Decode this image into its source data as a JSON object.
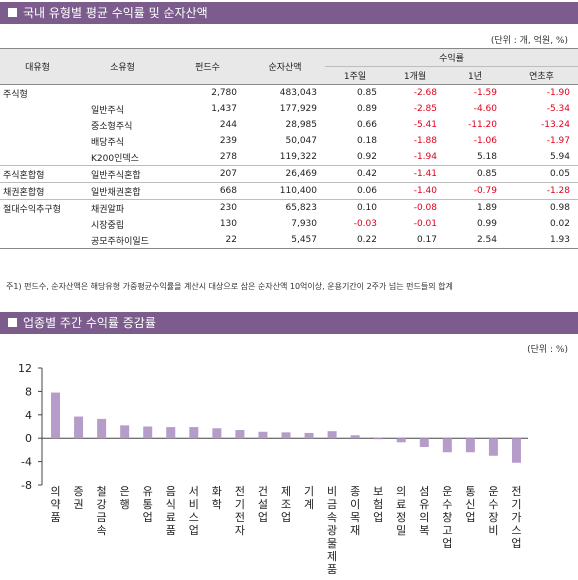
{
  "section1": {
    "title": "국내 유형별 평균 수익률 및 순자산액",
    "unit": "(단위 : 개, 억원, %)",
    "headers": {
      "major": "대유형",
      "minor": "소유형",
      "funds": "펀드수",
      "assets": "순자산액",
      "returns": "수익률",
      "w1": "1주일",
      "m1": "1개월",
      "y1": "1년",
      "ytd": "연초후"
    },
    "rows": [
      {
        "group": "주식형",
        "sub": "",
        "funds": "2,780",
        "assets": "483,043",
        "w1": "0.85",
        "m1": "-2.68",
        "y1": "-1.59",
        "ytd": "-1.90"
      },
      {
        "group": "",
        "sub": "일반주식",
        "funds": "1,437",
        "assets": "177,929",
        "w1": "0.89",
        "m1": "-2.85",
        "y1": "-4.60",
        "ytd": "-5.34"
      },
      {
        "group": "",
        "sub": "중소형주식",
        "funds": "244",
        "assets": "28,985",
        "w1": "0.66",
        "m1": "-5.41",
        "y1": "-11.20",
        "ytd": "-13.24"
      },
      {
        "group": "",
        "sub": "배당주식",
        "funds": "239",
        "assets": "50,047",
        "w1": "0.18",
        "m1": "-1.88",
        "y1": "-1.06",
        "ytd": "-1.97"
      },
      {
        "group": "",
        "sub": "K200인덱스",
        "funds": "278",
        "assets": "119,322",
        "w1": "0.92",
        "m1": "-1.94",
        "y1": "5.18",
        "ytd": "5.94"
      },
      {
        "group": "주식혼합형",
        "sub": "일반주식혼합",
        "funds": "207",
        "assets": "26,469",
        "w1": "0.42",
        "m1": "-1.41",
        "y1": "0.85",
        "ytd": "0.05"
      },
      {
        "group": "채권혼합형",
        "sub": "일반채권혼합",
        "funds": "668",
        "assets": "110,400",
        "w1": "0.06",
        "m1": "-1.40",
        "y1": "-0.79",
        "ytd": "-1.28"
      },
      {
        "group": "절대수익추구형",
        "sub": "채권알파",
        "funds": "230",
        "assets": "65,823",
        "w1": "0.10",
        "m1": "-0.08",
        "y1": "1.89",
        "ytd": "0.98"
      },
      {
        "group": "",
        "sub": "시장중립",
        "funds": "130",
        "assets": "7,930",
        "w1": "-0.03",
        "m1": "-0.01",
        "y1": "0.99",
        "ytd": "0.02"
      },
      {
        "group": "",
        "sub": "공모주하이일드",
        "funds": "22",
        "assets": "5,457",
        "w1": "0.22",
        "m1": "0.17",
        "y1": "2.54",
        "ytd": "1.93"
      }
    ],
    "note": "주1) 펀드수, 순자산액은 해당유형 가중평균수익률을 계산시 대상으로 삼은 순자산액 10억이상, 운용기간이 2주가 넘는 펀드들의 합계"
  },
  "section2": {
    "title": "업종별 주간 수익률 증감률",
    "unit": "(단위 : %)"
  },
  "colors": {
    "header_bg": "#7b5c8c",
    "bar": "#b69cc8",
    "negative": "#e0001b"
  },
  "chart_data": {
    "type": "bar",
    "categories": [
      "의약품",
      "증권",
      "철강금속",
      "은행",
      "유통업",
      "음식료품",
      "서비스업",
      "화학",
      "전기전자",
      "건설업",
      "제조업",
      "기계",
      "비금속광물제품",
      "종이목재",
      "보험업",
      "의료정밀",
      "섬유의복",
      "운수창고업",
      "통신업",
      "운수장비",
      "전기가스업"
    ],
    "values": [
      7.8,
      3.7,
      3.3,
      2.2,
      2.0,
      1.9,
      1.9,
      1.7,
      1.4,
      1.1,
      1.0,
      0.9,
      1.2,
      0.5,
      -0.1,
      -0.7,
      -1.5,
      -2.4,
      -2.4,
      -3.0,
      -4.2
    ],
    "yticks": [
      12,
      8,
      4,
      0,
      -4,
      -8
    ],
    "ylim": [
      -8,
      12
    ],
    "grid": false
  }
}
